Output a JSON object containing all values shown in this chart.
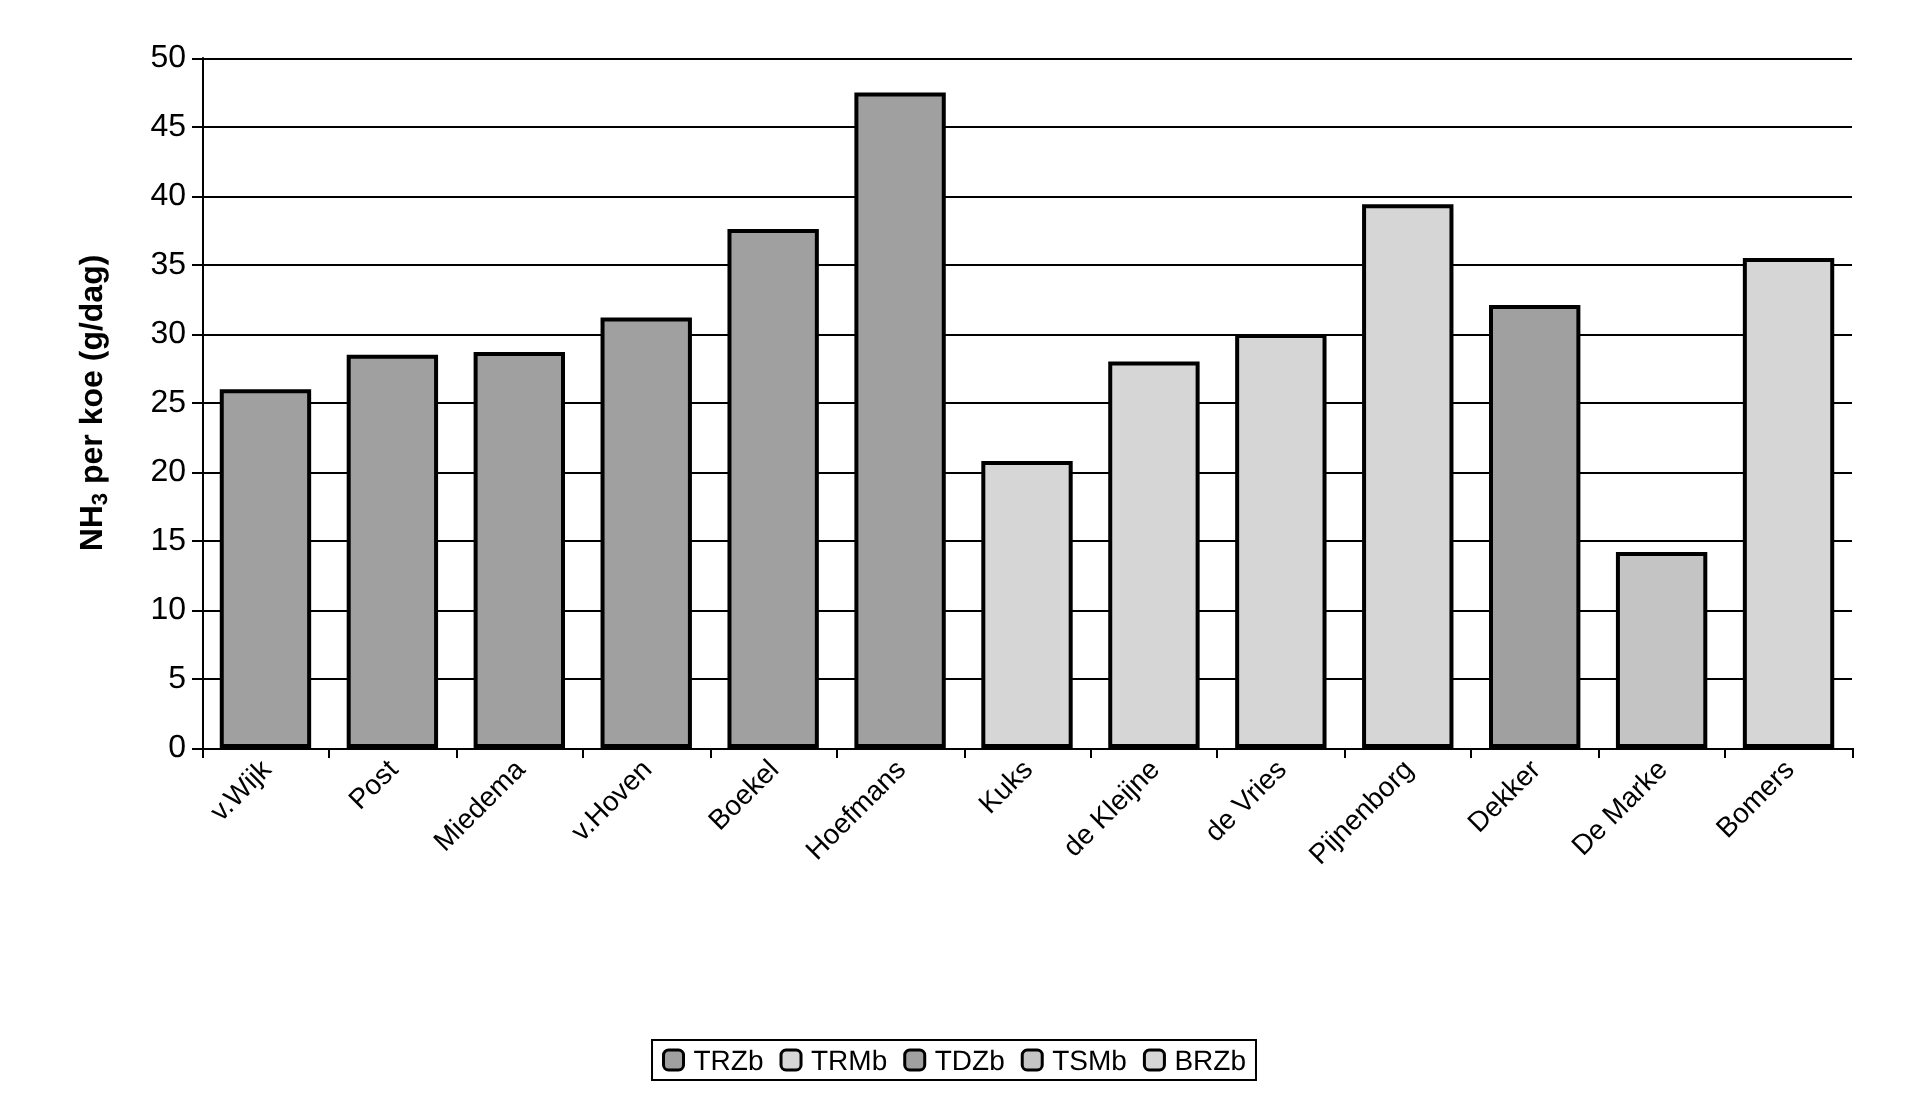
{
  "chart_data": {
    "type": "bar",
    "ylabel": "NH$_{3}$ per koe (g/dag)",
    "categories": [
      "v.Wijk",
      "Post",
      "Miedema",
      "v.Hoven",
      "Boekel",
      "Hoefmans",
      "Kuks",
      "de Kleijne",
      "de Vries",
      "Pijnenborg",
      "Dekker",
      "De Marke",
      "Bomers"
    ],
    "series": [
      {
        "name": "TRZb",
        "color": "#a0a0a0",
        "values": [
          26,
          28.5,
          28.7,
          31.2,
          37.6,
          47.5,
          null,
          null,
          null,
          null,
          null,
          null,
          null
        ]
      },
      {
        "name": "TRMb",
        "color": "#d6d6d6",
        "values": [
          null,
          null,
          null,
          null,
          null,
          null,
          20.8,
          28,
          30,
          39.4,
          null,
          null,
          null
        ]
      },
      {
        "name": "TDZb",
        "color": "#a0a0a0",
        "values": [
          null,
          null,
          null,
          null,
          null,
          null,
          null,
          null,
          null,
          null,
          32.1,
          null,
          null
        ]
      },
      {
        "name": "TSMb",
        "color": "#c4c4c4",
        "values": [
          null,
          null,
          null,
          null,
          null,
          null,
          null,
          null,
          null,
          null,
          null,
          14.2,
          null
        ]
      },
      {
        "name": "BRZb",
        "color": "#d6d6d6",
        "values": [
          null,
          null,
          null,
          null,
          null,
          null,
          null,
          null,
          null,
          null,
          null,
          null,
          35.5
        ]
      }
    ],
    "stacked": true,
    "ylim": [
      0,
      50
    ],
    "yticks": [
      0,
      5,
      10,
      15,
      20,
      25,
      30,
      35,
      40,
      45,
      50
    ],
    "grid": "y",
    "legend": "bottom"
  }
}
